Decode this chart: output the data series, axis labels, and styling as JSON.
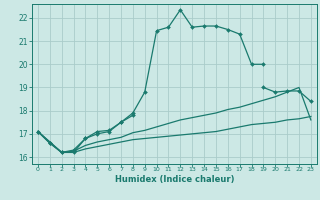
{
  "xlabel": "Humidex (Indice chaleur)",
  "background_color": "#cce8e5",
  "grid_color": "#aaccca",
  "line_color": "#1a7a6e",
  "xlim": [
    -0.5,
    23.5
  ],
  "ylim": [
    15.7,
    22.6
  ],
  "yticks": [
    16,
    17,
    18,
    19,
    20,
    21,
    22
  ],
  "xticks": [
    0,
    1,
    2,
    3,
    4,
    5,
    6,
    7,
    8,
    9,
    10,
    11,
    12,
    13,
    14,
    15,
    16,
    17,
    18,
    19,
    20,
    21,
    22,
    23
  ],
  "lines": [
    {
      "x": [
        0,
        1,
        2,
        3,
        4,
        5,
        6,
        7,
        8,
        9,
        10,
        11,
        12,
        13,
        14,
        15,
        16,
        17,
        18,
        19
      ],
      "y": [
        17.1,
        16.6,
        16.2,
        16.2,
        16.8,
        17.1,
        17.15,
        17.5,
        17.9,
        18.8,
        21.45,
        21.6,
        22.35,
        21.6,
        21.65,
        21.65,
        21.5,
        21.3,
        20.0,
        20.0
      ],
      "marker": true
    },
    {
      "x": [
        0,
        1,
        2,
        3,
        4,
        5,
        6,
        7,
        8
      ],
      "y": [
        17.1,
        16.6,
        16.2,
        16.3,
        16.8,
        17.0,
        17.1,
        17.5,
        17.8
      ],
      "marker": true
    },
    {
      "x": [
        19,
        20,
        21,
        22,
        23
      ],
      "y": [
        19.0,
        18.8,
        18.85,
        18.85,
        18.4
      ],
      "marker": true
    },
    {
      "x": [
        0,
        2,
        3,
        4,
        5,
        6,
        7,
        8,
        9,
        10,
        11,
        12,
        13,
        14,
        15,
        16,
        17,
        18,
        19,
        20,
        21,
        22,
        23
      ],
      "y": [
        17.1,
        16.2,
        16.25,
        16.5,
        16.65,
        16.75,
        16.85,
        17.05,
        17.15,
        17.3,
        17.45,
        17.6,
        17.7,
        17.8,
        17.9,
        18.05,
        18.15,
        18.3,
        18.45,
        18.6,
        18.8,
        19.0,
        17.6
      ],
      "marker": false
    },
    {
      "x": [
        0,
        2,
        3,
        4,
        5,
        6,
        7,
        8,
        9,
        10,
        11,
        12,
        13,
        14,
        15,
        16,
        17,
        18,
        19,
        20,
        21,
        22,
        23
      ],
      "y": [
        17.1,
        16.2,
        16.2,
        16.35,
        16.45,
        16.55,
        16.65,
        16.75,
        16.8,
        16.85,
        16.9,
        16.95,
        17.0,
        17.05,
        17.1,
        17.2,
        17.3,
        17.4,
        17.45,
        17.5,
        17.6,
        17.65,
        17.75
      ],
      "marker": false
    }
  ]
}
